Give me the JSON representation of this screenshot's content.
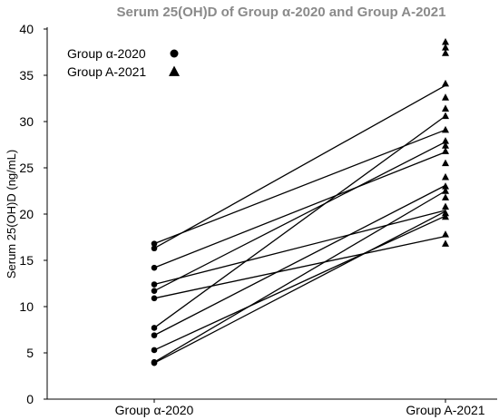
{
  "chart_data": {
    "type": "scatter",
    "title": "Serum 25(OH)D of Group α-2020 and Group A-2021",
    "xlabel": "",
    "ylabel": "Serum 25(OH)D (ng/mL)",
    "categories": [
      "Group α-2020",
      "Group A-2021"
    ],
    "ylim": [
      0,
      40
    ],
    "yticks": [
      0,
      5,
      10,
      15,
      20,
      25,
      30,
      35,
      40
    ],
    "grid": false,
    "legend_position": "top-left",
    "series": [
      {
        "name": "Group α-2020",
        "marker": "circle",
        "values": [
          16.8,
          16.3,
          14.2,
          12.4,
          11.7,
          10.9,
          7.7,
          6.9,
          5.3,
          4.0,
          3.9
        ]
      },
      {
        "name": "Group A-2021",
        "marker": "triangle",
        "values": [
          38.6,
          38.0,
          37.4,
          34.1,
          32.6,
          31.4,
          30.6,
          29.1,
          27.9,
          27.4,
          26.8,
          25.5,
          24.0,
          23.0,
          22.5,
          21.8,
          20.8,
          20.1,
          19.7,
          17.8,
          16.8
        ]
      }
    ],
    "pairs": [
      [
        16.8,
        29.1
      ],
      [
        16.3,
        33.9
      ],
      [
        14.2,
        26.7
      ],
      [
        12.4,
        20.4
      ],
      [
        11.7,
        27.8
      ],
      [
        10.9,
        17.6
      ],
      [
        7.7,
        30.6
      ],
      [
        6.9,
        23.1
      ],
      [
        5.3,
        19.8
      ],
      [
        4.0,
        22.5
      ],
      [
        3.9,
        20.3
      ]
    ]
  }
}
